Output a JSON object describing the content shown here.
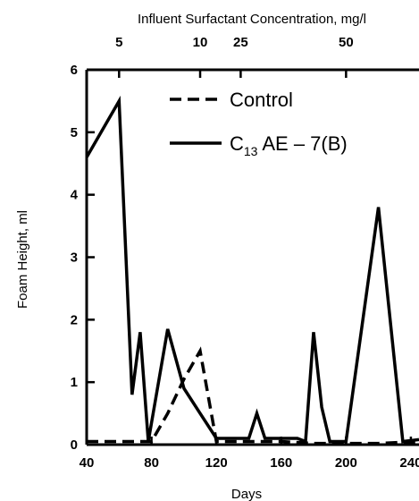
{
  "chart_data": {
    "type": "line",
    "xlabel": "Days",
    "ylabel": "Foam Height, ml",
    "top_axis_label": "Influent Surfactant Concentration, mg/l",
    "xlim": [
      40,
      245
    ],
    "ylim": [
      0,
      6
    ],
    "x_ticks": [
      40,
      80,
      120,
      160,
      200,
      240
    ],
    "y_ticks": [
      0,
      1,
      2,
      3,
      4,
      5,
      6
    ],
    "top_ticks": [
      {
        "x": 60,
        "label": "5"
      },
      {
        "x": 110,
        "label": "10"
      },
      {
        "x": 135,
        "label": "25"
      },
      {
        "x": 200,
        "label": "50"
      }
    ],
    "grid": false,
    "legend_position": "top-right",
    "series": [
      {
        "name": "Control",
        "style": "dashed",
        "color": "#000000",
        "x": [
          40,
          60,
          80,
          90,
          100,
          110,
          120,
          140,
          160,
          180,
          200,
          220,
          245
        ],
        "y": [
          0.05,
          0.05,
          0.05,
          0.5,
          1.05,
          1.5,
          0.05,
          0.05,
          0.05,
          0.02,
          0.02,
          0.02,
          0.05
        ]
      },
      {
        "name": "C13 AE - 7(B)",
        "name_parts": {
          "main": "C",
          "sub": "13",
          "rest": " AE – 7(B)"
        },
        "style": "solid",
        "color": "#000000",
        "x": [
          40,
          60,
          68,
          73,
          78,
          90,
          100,
          110,
          120,
          140,
          145,
          150,
          170,
          175,
          180,
          185,
          190,
          200,
          220,
          235,
          245
        ],
        "y": [
          4.6,
          5.5,
          0.8,
          1.8,
          0.05,
          1.85,
          0.9,
          0.5,
          0.1,
          0.1,
          0.5,
          0.1,
          0.1,
          0.05,
          1.8,
          0.6,
          0.05,
          0.05,
          3.8,
          0.05,
          0.08
        ]
      }
    ]
  }
}
